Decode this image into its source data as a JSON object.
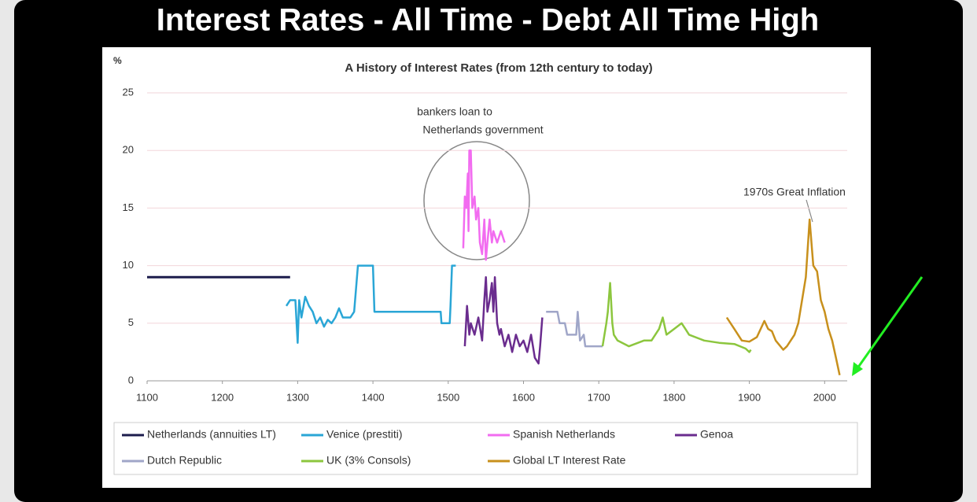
{
  "chart_data": {
    "type": "line",
    "page_title": "Interest Rates - All Time - Debt All Time High",
    "title": "A History of Interest Rates (from 12th century to today)",
    "ylabel": "%",
    "annotations": [
      "bankers loan to",
      "Netherlands government",
      "1970s Great Inflation"
    ],
    "xlim": [
      1100,
      2030
    ],
    "ylim": [
      0,
      25
    ],
    "xticks": [
      1100,
      1200,
      1300,
      1400,
      1500,
      1600,
      1700,
      1800,
      1900,
      2000
    ],
    "yticks": [
      0,
      5,
      10,
      15,
      20,
      25
    ],
    "grid": true,
    "series": [
      {
        "name": "Netherlands (annuities LT)",
        "color": "#1c1c4c",
        "x": [
          1100,
          1290
        ],
        "values": [
          9,
          9
        ]
      },
      {
        "name": "Venice (prestiti)",
        "color": "#2aa6d6",
        "x": [
          1285,
          1290,
          1297,
          1300,
          1302,
          1305,
          1310,
          1315,
          1320,
          1325,
          1330,
          1335,
          1340,
          1345,
          1350,
          1355,
          1360,
          1370,
          1375,
          1380,
          1400,
          1402,
          1490,
          1491,
          1502,
          1503,
          1505,
          1510
        ],
        "values": [
          6.5,
          7,
          7,
          3.3,
          7,
          5.5,
          7.3,
          6.5,
          6,
          5,
          5.5,
          4.7,
          5.3,
          5,
          5.5,
          6.3,
          5.5,
          5.5,
          6,
          10,
          10,
          6,
          6,
          5,
          5,
          6.5,
          10,
          10
        ]
      },
      {
        "name": "Spanish Netherlands",
        "color": "#f26cf0",
        "x": [
          1520,
          1522,
          1524,
          1526,
          1527,
          1528,
          1530,
          1532,
          1535,
          1537,
          1540,
          1542,
          1545,
          1548,
          1550,
          1552,
          1555,
          1558,
          1560,
          1565,
          1570,
          1575
        ],
        "values": [
          11.5,
          16,
          15,
          18,
          13,
          20,
          20,
          15,
          16,
          14,
          15,
          12,
          11,
          14,
          10.5,
          12,
          14,
          12,
          13,
          12,
          13,
          12
        ]
      },
      {
        "name": "Genoa",
        "color": "#6a2c8e",
        "x": [
          1522,
          1525,
          1528,
          1530,
          1535,
          1540,
          1545,
          1548,
          1550,
          1552,
          1555,
          1558,
          1560,
          1562,
          1565,
          1568,
          1570,
          1575,
          1580,
          1585,
          1590,
          1595,
          1600,
          1605,
          1610,
          1615,
          1620,
          1622,
          1625
        ],
        "values": [
          3,
          6.5,
          4,
          5,
          4,
          5.5,
          3.5,
          7,
          9,
          6,
          7,
          8.5,
          6,
          9,
          5,
          4,
          4.5,
          3,
          4,
          2.5,
          4,
          3,
          3.5,
          2.5,
          4,
          2,
          1.5,
          3,
          5.5
        ]
      },
      {
        "name": "Dutch Republic",
        "color": "#a0a6c8",
        "x": [
          1630,
          1645,
          1648,
          1655,
          1658,
          1670,
          1672,
          1675,
          1680,
          1682,
          1705
        ],
        "values": [
          6,
          6,
          5,
          5,
          4,
          4,
          6,
          3.5,
          4,
          3,
          3
        ]
      },
      {
        "name": "UK (3% Consols)",
        "color": "#8cc63e",
        "x": [
          1705,
          1710,
          1712,
          1715,
          1718,
          1720,
          1725,
          1740,
          1760,
          1770,
          1780,
          1785,
          1790,
          1800,
          1810,
          1815,
          1820,
          1840,
          1860,
          1880,
          1895,
          1900,
          1902
        ],
        "values": [
          3,
          5,
          6,
          8.5,
          5,
          4,
          3.5,
          3,
          3.5,
          3.5,
          4.5,
          5.5,
          4,
          4.5,
          5,
          4.5,
          4,
          3.5,
          3.3,
          3.2,
          2.8,
          2.5,
          2.7
        ]
      },
      {
        "name": "Global LT Interest Rate",
        "color": "#c8901c",
        "x": [
          1870,
          1880,
          1890,
          1900,
          1910,
          1920,
          1925,
          1930,
          1935,
          1945,
          1950,
          1960,
          1965,
          1970,
          1975,
          1980,
          1985,
          1990,
          1995,
          2000,
          2005,
          2010,
          2015,
          2020
        ],
        "values": [
          5.5,
          4.5,
          3.5,
          3.4,
          3.8,
          5.2,
          4.5,
          4.3,
          3.5,
          2.7,
          3,
          4,
          5,
          7,
          9,
          14,
          10,
          9.5,
          7,
          6,
          4.5,
          3.5,
          2,
          0.5
        ]
      }
    ]
  }
}
